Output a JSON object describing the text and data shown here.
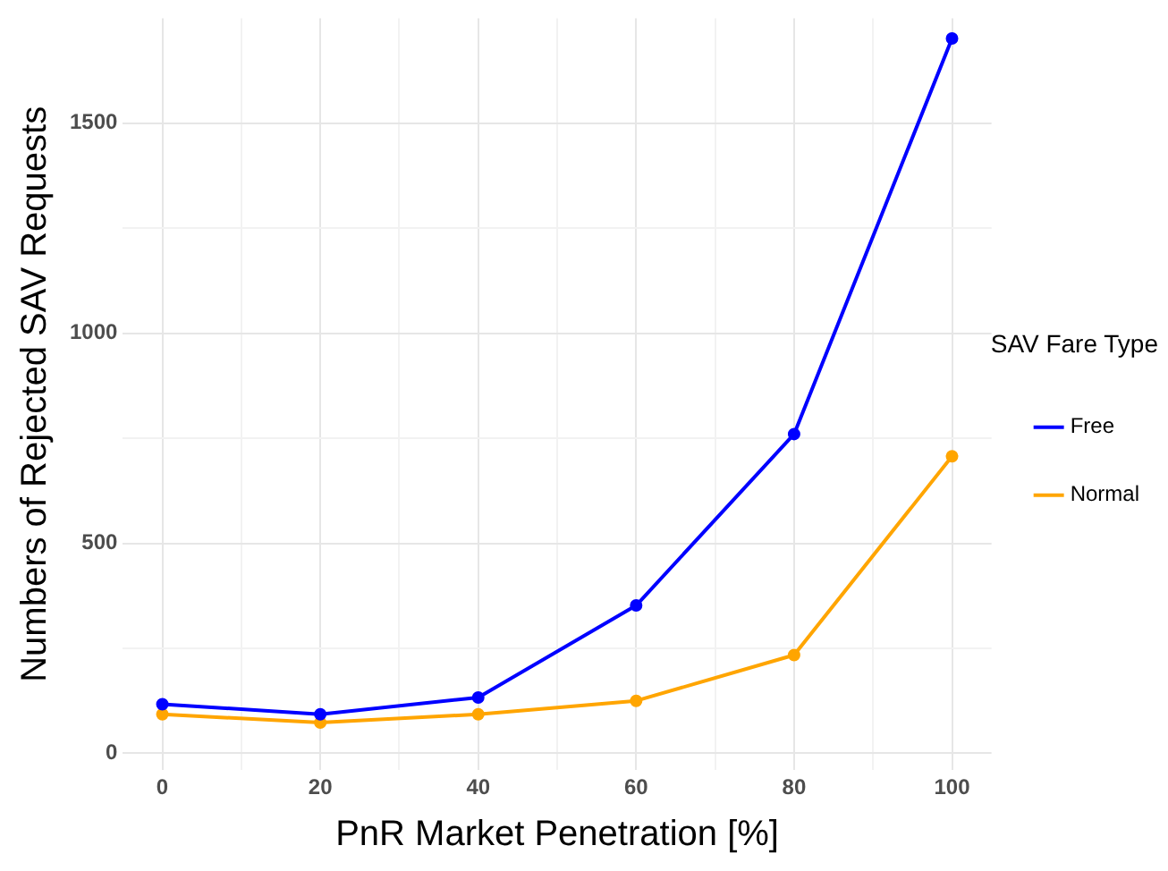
{
  "chart_data": {
    "type": "line",
    "xlabel": "PnR Market Penetration [%]",
    "ylabel": "Numbers of Rejected SAV Requests",
    "legend_title": "SAV Fare Type",
    "x": [
      0,
      20,
      40,
      60,
      80,
      100
    ],
    "series": [
      {
        "name": "Free",
        "color": "#0000ff",
        "values": [
          117,
          93,
          133,
          352,
          760,
          1702
        ]
      },
      {
        "name": "Normal",
        "color": "#ffa500",
        "values": [
          93,
          73,
          93,
          125,
          234,
          707
        ]
      }
    ],
    "xlim": [
      -5,
      105
    ],
    "ylim": [
      -40,
      1750
    ],
    "xticks": [
      0,
      {
        "value": 10,
        "label": null
      },
      20,
      {
        "value": 30,
        "label": null
      },
      40,
      {
        "value": 50,
        "label": null
      },
      60,
      {
        "value": 70,
        "label": null
      },
      80,
      {
        "value": 90,
        "label": null
      },
      100
    ],
    "yticks": [
      0,
      {
        "value": 250,
        "label": null
      },
      500,
      {
        "value": 750,
        "label": null
      },
      1000,
      {
        "value": 1250,
        "label": null
      },
      1500
    ],
    "grid": true,
    "legend": "right",
    "marker": "circle",
    "line_style": "solid"
  }
}
